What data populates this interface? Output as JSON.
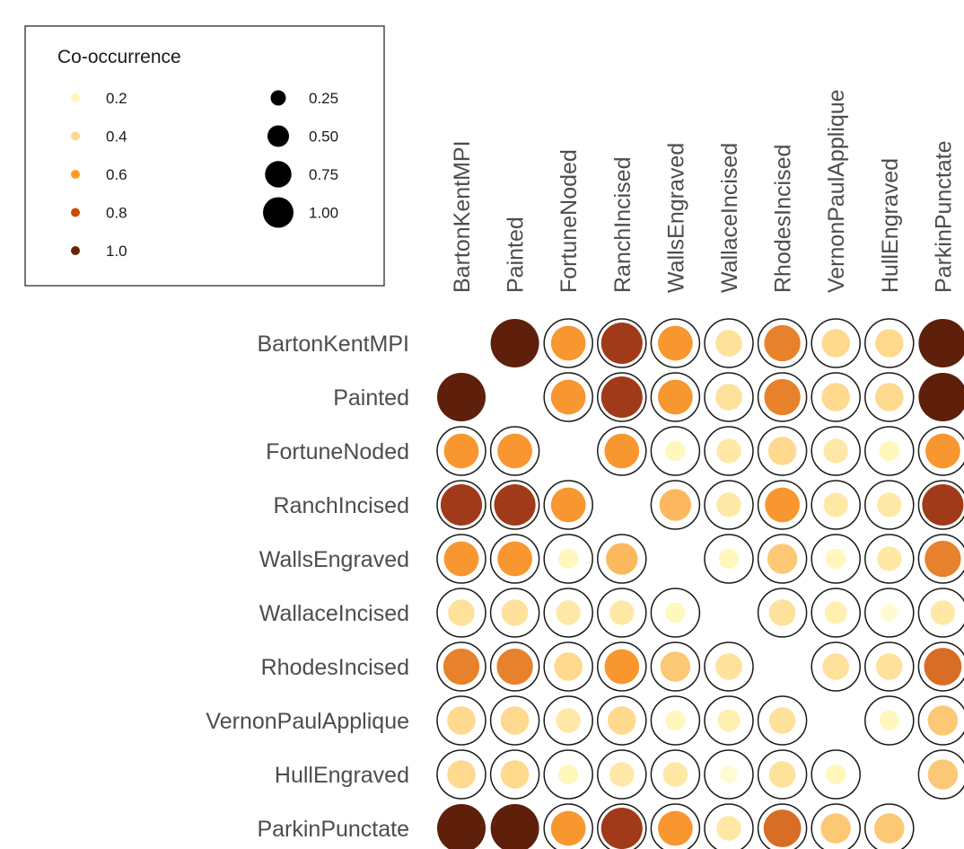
{
  "chart_data": {
    "type": "bubble-matrix",
    "title": "",
    "xlabel": "",
    "ylabel": "",
    "categories": [
      "BartonKentMPI",
      "Painted",
      "FortuneNoded",
      "RanchIncised",
      "WallsEngraved",
      "WallaceIncised",
      "RhodesIncised",
      "VernonPaulApplique",
      "HullEngraved",
      "ParkinPunctate"
    ],
    "values": [
      [
        null,
        1.0,
        0.6,
        0.85,
        0.6,
        0.35,
        0.65,
        0.4,
        0.4,
        1.0
      ],
      [
        1.0,
        null,
        0.6,
        0.85,
        0.6,
        0.35,
        0.65,
        0.4,
        0.4,
        1.0
      ],
      [
        0.6,
        0.6,
        null,
        0.6,
        0.2,
        0.3,
        0.4,
        0.3,
        0.2,
        0.6
      ],
      [
        0.85,
        0.85,
        0.6,
        null,
        0.5,
        0.3,
        0.6,
        0.3,
        0.3,
        0.85
      ],
      [
        0.6,
        0.6,
        0.2,
        0.5,
        null,
        0.2,
        0.45,
        0.2,
        0.3,
        0.65
      ],
      [
        0.35,
        0.35,
        0.3,
        0.3,
        0.2,
        null,
        0.35,
        0.25,
        0.15,
        0.3
      ],
      [
        0.65,
        0.65,
        0.4,
        0.6,
        0.45,
        0.35,
        null,
        0.35,
        0.35,
        0.7
      ],
      [
        0.4,
        0.4,
        0.3,
        0.4,
        0.2,
        0.25,
        0.35,
        null,
        0.2,
        0.45
      ],
      [
        0.4,
        0.4,
        0.2,
        0.3,
        0.3,
        0.15,
        0.35,
        0.2,
        null,
        0.45
      ],
      [
        1.0,
        1.0,
        0.6,
        0.85,
        0.6,
        0.3,
        0.7,
        0.45,
        0.45,
        null
      ]
    ],
    "legend": {
      "title": "Co-occurrence",
      "placement": "top-left",
      "color_entries": [
        {
          "label": "0.2",
          "value": 0.2,
          "color": "#fff7bc"
        },
        {
          "label": "0.4",
          "value": 0.4,
          "color": "#fed98e"
        },
        {
          "label": "0.6",
          "value": 0.6,
          "color": "#fe9929"
        },
        {
          "label": "0.8",
          "value": 0.8,
          "color": "#cc4c02"
        },
        {
          "label": "1.0",
          "value": 1.0,
          "color": "#662506"
        }
      ],
      "size_entries": [
        {
          "label": "0.25",
          "value": 0.25
        },
        {
          "label": "0.50",
          "value": 0.5
        },
        {
          "label": "0.75",
          "value": 0.75
        },
        {
          "label": "1.00",
          "value": 1.0
        }
      ]
    },
    "color_scale": {
      "stops": [
        {
          "value": 0.1,
          "color": "#fffde6"
        },
        {
          "value": 0.2,
          "color": "#fff7bc"
        },
        {
          "value": 0.4,
          "color": "#fed98e"
        },
        {
          "value": 0.6,
          "color": "#f8962f"
        },
        {
          "value": 0.8,
          "color": "#b7431d"
        },
        {
          "value": 1.0,
          "color": "#5e1f0b"
        }
      ]
    },
    "outline_color": "#1a1a1a",
    "grid": false
  }
}
